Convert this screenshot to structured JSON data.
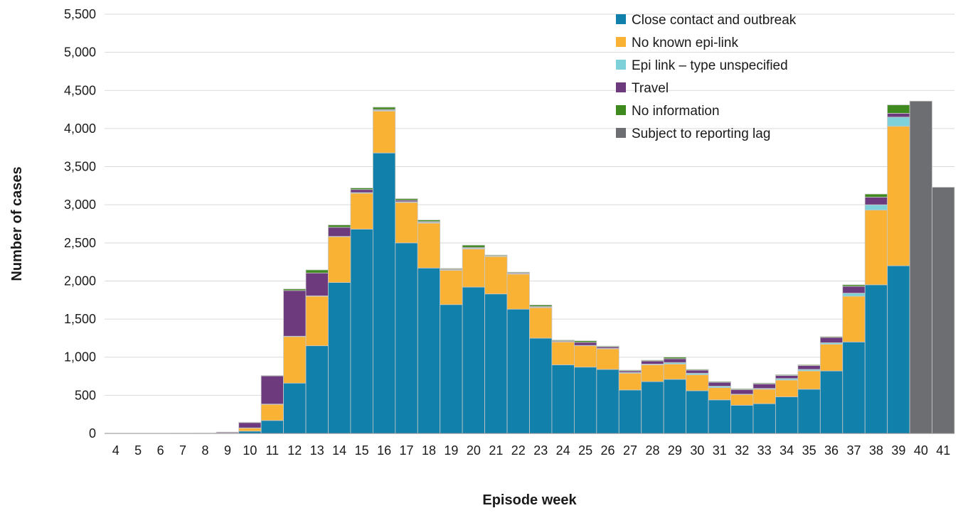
{
  "chart_data": {
    "type": "bar",
    "stacked": true,
    "xlabel": "Episode week",
    "ylabel": "Number of cases",
    "ylim": [
      0,
      5500
    ],
    "yticks": [
      0,
      500,
      1000,
      1500,
      2000,
      2500,
      3000,
      3500,
      4000,
      4500,
      5000,
      5500
    ],
    "ytick_labels": [
      "0",
      "500",
      "1,000",
      "1,500",
      "2,000",
      "2,500",
      "3,000",
      "3,500",
      "4,000",
      "4,500",
      "5,000",
      "5,500"
    ],
    "grid": true,
    "legend_position": "top-right",
    "categories": [
      "4",
      "5",
      "6",
      "7",
      "8",
      "9",
      "10",
      "11",
      "12",
      "13",
      "14",
      "15",
      "16",
      "17",
      "18",
      "19",
      "20",
      "21",
      "22",
      "23",
      "24",
      "25",
      "26",
      "27",
      "28",
      "29",
      "30",
      "31",
      "32",
      "33",
      "34",
      "35",
      "36",
      "37",
      "38",
      "39",
      "40",
      "41"
    ],
    "series": [
      {
        "name": "Close contact and outbreak",
        "color": "#1180aa",
        "values": [
          0,
          0,
          0,
          0,
          0,
          5,
          30,
          170,
          660,
          1150,
          1980,
          2680,
          3680,
          2500,
          2170,
          1690,
          1920,
          1830,
          1630,
          1250,
          900,
          870,
          840,
          570,
          680,
          710,
          560,
          440,
          370,
          390,
          480,
          580,
          820,
          1200,
          1950,
          2200,
          0,
          0
        ]
      },
      {
        "name": "No known epi-link",
        "color": "#f9b233",
        "values": [
          0,
          0,
          0,
          0,
          0,
          2,
          40,
          210,
          610,
          650,
          600,
          470,
          550,
          530,
          590,
          450,
          500,
          490,
          460,
          400,
          300,
          280,
          270,
          220,
          220,
          200,
          210,
          160,
          140,
          190,
          220,
          240,
          350,
          600,
          980,
          1830,
          0,
          0
        ]
      },
      {
        "name": "Epi link – type unspecified",
        "color": "#7fd1d9",
        "values": [
          0,
          0,
          0,
          0,
          0,
          0,
          2,
          5,
          5,
          5,
          5,
          10,
          10,
          10,
          10,
          5,
          10,
          5,
          5,
          5,
          5,
          5,
          5,
          10,
          10,
          20,
          20,
          20,
          5,
          10,
          20,
          20,
          20,
          40,
          70,
          120,
          0,
          0
        ]
      },
      {
        "name": "Travel",
        "color": "#6c3a7d",
        "values": [
          0,
          0,
          0,
          2,
          3,
          10,
          70,
          370,
          600,
          300,
          120,
          40,
          10,
          20,
          10,
          10,
          10,
          5,
          10,
          10,
          10,
          40,
          20,
          20,
          40,
          50,
          40,
          50,
          60,
          60,
          40,
          50,
          70,
          90,
          100,
          50,
          0,
          0
        ]
      },
      {
        "name": "No information",
        "color": "#3f8a1f",
        "values": [
          0,
          0,
          0,
          0,
          0,
          0,
          5,
          5,
          20,
          40,
          30,
          20,
          30,
          20,
          20,
          10,
          30,
          10,
          10,
          20,
          10,
          20,
          10,
          10,
          10,
          20,
          10,
          10,
          10,
          10,
          10,
          10,
          10,
          20,
          40,
          110,
          0,
          0
        ]
      },
      {
        "name": "Subject to reporting lag",
        "color": "#6d6e71",
        "values": [
          0,
          0,
          0,
          0,
          0,
          0,
          0,
          0,
          0,
          0,
          0,
          0,
          0,
          0,
          0,
          0,
          0,
          0,
          0,
          0,
          0,
          0,
          0,
          0,
          0,
          0,
          0,
          0,
          0,
          0,
          0,
          0,
          0,
          0,
          0,
          0,
          4360,
          3230
        ]
      }
    ]
  }
}
